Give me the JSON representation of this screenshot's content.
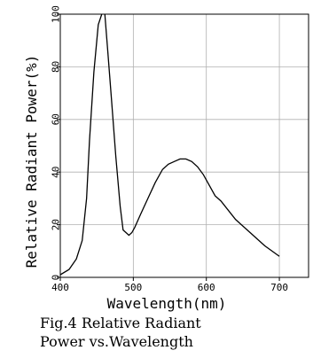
{
  "chart_data": {
    "type": "line",
    "title": "",
    "xlabel": "Wavelength(nm)",
    "ylabel": "Relative Radiant Power(%)",
    "caption_lines": [
      "Fig.4 Relative Radiant",
      "Power vs.Wavelength"
    ],
    "xlim": [
      400,
      740
    ],
    "ylim": [
      0,
      100
    ],
    "x_ticks": [
      400,
      500,
      600,
      700
    ],
    "y_ticks": [
      0,
      20,
      40,
      60,
      80,
      100
    ],
    "x_tick_labels": [
      "400",
      "500",
      "600",
      "700"
    ],
    "y_tick_labels": [
      "0",
      "20",
      "40",
      "60",
      "80",
      "100"
    ],
    "grid": true,
    "line_color": "#000000",
    "grid_color": "#b0b0b0",
    "series": [
      {
        "x": [
          400,
          412,
          422,
          430,
          436,
          440,
          446,
          452,
          458,
          461,
          465,
          470,
          476,
          482,
          486,
          490,
          494,
          498,
          502,
          510,
          520,
          530,
          540,
          548,
          556,
          564,
          572,
          580,
          588,
          596,
          604,
          612,
          620,
          640,
          660,
          680,
          700
        ],
        "y": [
          1,
          3,
          7,
          14,
          30,
          52,
          78,
          96,
          101,
          100,
          86,
          68,
          46,
          27,
          18,
          17,
          16,
          17,
          19,
          24,
          30,
          36,
          41,
          43,
          44,
          45,
          45,
          44,
          42,
          39,
          35,
          31,
          29,
          22,
          17,
          12,
          8
        ]
      }
    ]
  }
}
